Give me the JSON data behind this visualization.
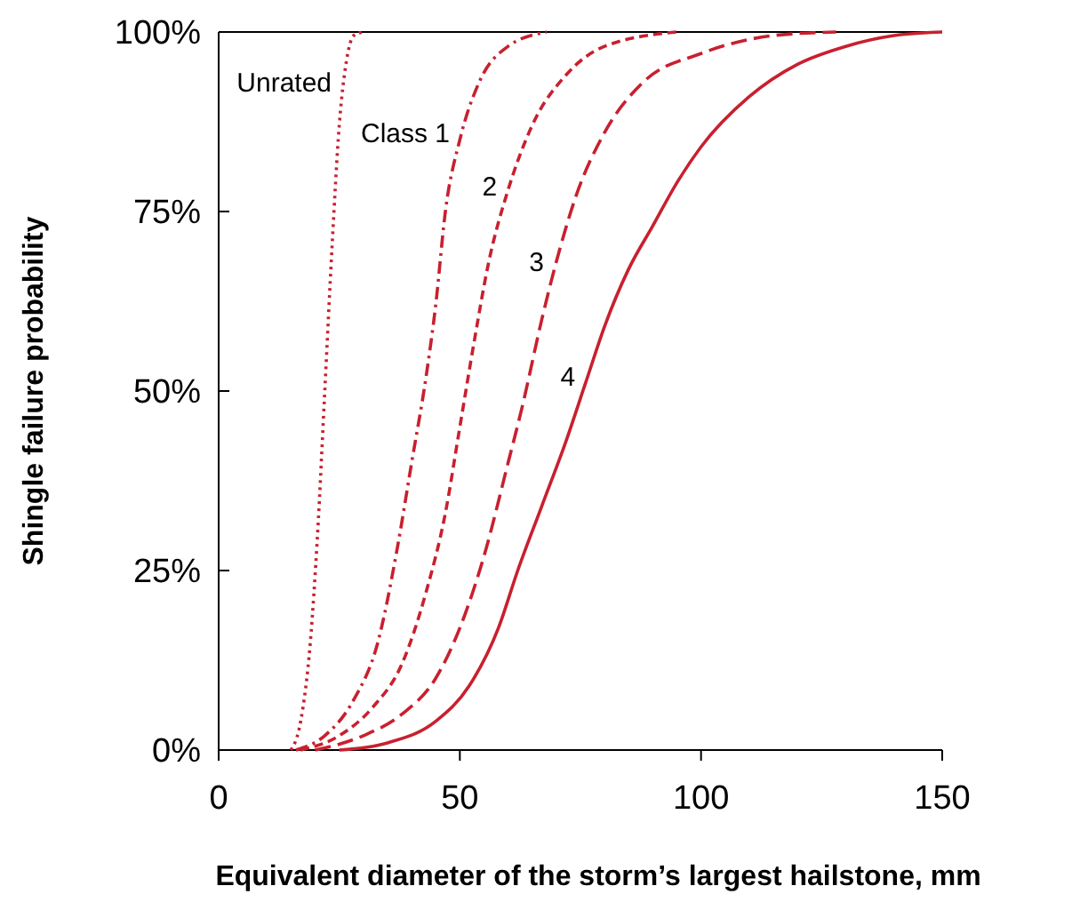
{
  "chart_data": {
    "type": "line",
    "xlabel": "Equivalent diameter of the storm’s largest hailstone, mm",
    "ylabel": "Shingle failure probability",
    "xlim": [
      0,
      150
    ],
    "ylim": [
      0,
      100
    ],
    "xticks": [
      0,
      50,
      100,
      150
    ],
    "yticks": [
      {
        "value": 0,
        "label": "0%"
      },
      {
        "value": 25,
        "label": "25%"
      },
      {
        "value": 50,
        "label": "50%"
      },
      {
        "value": 75,
        "label": "75%"
      },
      {
        "value": 100,
        "label": "100%"
      }
    ],
    "grid": false,
    "marker": "none",
    "series": [
      {
        "name": "Unrated",
        "color": "#c8202f",
        "line_style": "dotted",
        "x": [
          15,
          17,
          19,
          20.5,
          22,
          23.5,
          25,
          26.5,
          28,
          30
        ],
        "values": [
          0,
          4,
          15,
          30,
          50,
          70,
          87,
          96,
          99.5,
          100
        ]
      },
      {
        "name": "Class 1",
        "color": "#c8202f",
        "line_style": "dashdot",
        "x": [
          16,
          22,
          28,
          33,
          37,
          40,
          43,
          45,
          47,
          50,
          54,
          60,
          68
        ],
        "values": [
          0,
          2,
          7,
          15,
          28,
          40,
          52,
          62,
          75,
          85,
          93,
          98,
          100
        ]
      },
      {
        "name": "2",
        "color": "#c8202f",
        "line_style": "dashed",
        "x": [
          17,
          25,
          32,
          38,
          43,
          47,
          50,
          53,
          56,
          60,
          65,
          72,
          80,
          95
        ],
        "values": [
          0,
          2,
          6,
          12,
          22,
          33,
          45,
          57,
          68,
          78,
          87,
          94,
          98,
          100
        ]
      },
      {
        "name": "3",
        "color": "#c8202f",
        "line_style": "longdashed",
        "x": [
          20,
          30,
          38,
          45,
          50,
          55,
          60,
          63,
          67,
          70,
          74,
          80,
          88,
          100,
          115,
          128
        ],
        "values": [
          0,
          2,
          5,
          10,
          17,
          27,
          40,
          48,
          60,
          68,
          77,
          86,
          93,
          97,
          99.5,
          100
        ]
      },
      {
        "name": "4",
        "color": "#c8202f",
        "line_style": "solid",
        "x": [
          25,
          35,
          45,
          52,
          58,
          62,
          67,
          72,
          76,
          80,
          85,
          90,
          95,
          100,
          110,
          120,
          130,
          140,
          150
        ],
        "values": [
          0,
          1,
          4,
          9,
          17,
          25,
          34,
          43,
          51,
          59,
          67,
          73,
          79,
          84,
          91,
          95.5,
          98,
          99.5,
          100
        ]
      }
    ]
  }
}
